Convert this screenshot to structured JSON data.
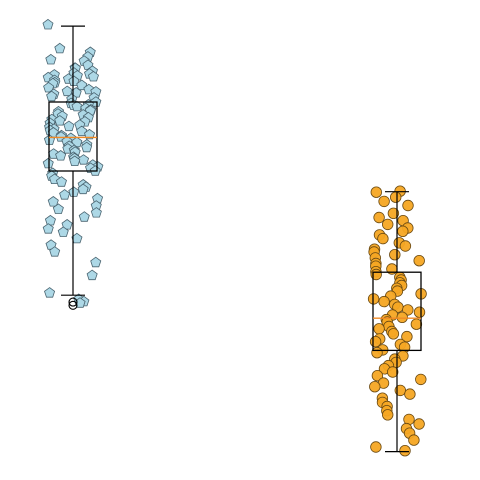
{
  "chart_data": {
    "type": "box",
    "title": "",
    "xlabel": "",
    "ylabel": "",
    "axes_visible": false,
    "grid": false,
    "legend": "none",
    "ylim": [
      0,
      100
    ],
    "series": [
      {
        "group_index": 0,
        "marker": "pentagon",
        "point_color": "#add8e6",
        "box": {
          "whisker_low": 38,
          "q1": 65,
          "median": 72.3,
          "q3": 80,
          "whisker_high": 96.5
        },
        "outliers": [
          36.5,
          35.8
        ],
        "points": [
          96.8,
          91.6,
          90.8,
          89.8,
          89.2,
          88.9,
          88.0,
          87.4,
          87.3,
          86.7,
          86.3,
          86.1,
          85.9,
          85.7,
          85.5,
          85.3,
          85.0,
          84.7,
          84.5,
          84.2,
          84.0,
          83.6,
          83.1,
          82.7,
          82.3,
          82.2,
          82.0,
          81.7,
          81.2,
          80.9,
          80.6,
          80.0,
          79.7,
          79.4,
          79.3,
          79.0,
          78.6,
          78.3,
          78.1,
          77.9,
          77.4,
          77.2,
          76.9,
          76.6,
          76.2,
          75.9,
          75.7,
          75.4,
          75.0,
          74.7,
          74.5,
          74.1,
          73.8,
          73.6,
          73.3,
          72.9,
          72.7,
          72.4,
          72.1,
          71.7,
          71.4,
          71.2,
          70.7,
          70.4,
          70.1,
          69.8,
          69.5,
          69.1,
          68.7,
          68.3,
          68.0,
          67.7,
          67.4,
          67.1,
          66.6,
          66.3,
          65.9,
          65.6,
          65.0,
          64.5,
          63.9,
          63.2,
          62.6,
          62.0,
          61.5,
          61.0,
          60.4,
          59.8,
          59.0,
          58.3,
          57.4,
          56.7,
          55.9,
          55.0,
          54.2,
          53.3,
          52.4,
          51.7,
          50.3,
          48.9,
          47.4,
          45.1,
          42.3,
          38.5,
          37.1,
          36.6,
          36.3
        ]
      },
      {
        "group_index": 1,
        "marker": "circle",
        "point_color": "#f5a623",
        "box": {
          "whisker_low": 4,
          "q1": 26,
          "median": 33,
          "q3": 43,
          "whisker_high": 60.5
        },
        "outliers": [],
        "points": [
          60.6,
          60.4,
          59.3,
          58.4,
          57.5,
          55.8,
          54.9,
          54.2,
          53.4,
          52.6,
          51.9,
          51.1,
          50.3,
          49.4,
          48.7,
          48.0,
          47.4,
          46.8,
          46.1,
          45.5,
          44.9,
          44.3,
          43.7,
          43.1,
          42.5,
          41.9,
          41.3,
          40.7,
          40.1,
          39.5,
          38.9,
          38.3,
          37.8,
          37.2,
          36.6,
          36.0,
          35.4,
          34.8,
          34.3,
          33.7,
          33.2,
          32.7,
          32.2,
          31.7,
          31.2,
          30.7,
          30.1,
          29.6,
          29.0,
          28.5,
          27.9,
          27.3,
          26.7,
          26.1,
          25.5,
          24.8,
          24.1,
          23.4,
          22.7,
          22.0,
          21.3,
          20.5,
          19.7,
          18.9,
          18.1,
          17.3,
          16.5,
          15.6,
          14.7,
          13.8,
          12.9,
          12.0,
          11.0,
          10.0,
          9.0,
          8.0,
          6.5,
          5.0,
          4.2
        ]
      }
    ]
  }
}
